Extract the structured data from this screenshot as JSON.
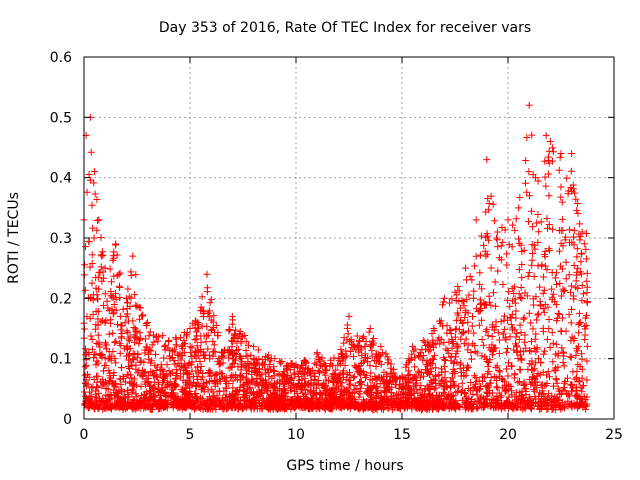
{
  "chart_data": {
    "type": "scatter",
    "title": "Day 353 of 2016, Rate Of TEC Index for receiver vars",
    "xlabel": "GPS time / hours",
    "ylabel": "ROTI / TECUs",
    "xlim": [
      0,
      25
    ],
    "ylim": [
      0,
      0.6
    ],
    "x_ticks": [
      0,
      5,
      10,
      15,
      20,
      25
    ],
    "y_ticks": [
      0,
      0.1,
      0.2,
      0.3,
      0.4,
      0.5,
      0.6
    ],
    "x_tick_labels": [
      "0",
      "5",
      "10",
      "15",
      "20",
      "25"
    ],
    "y_tick_labels": [
      "0",
      "0.1",
      "0.2",
      "0.3",
      "0.4",
      "0.5",
      "0.6"
    ],
    "grid": true,
    "marker": "+",
    "marker_color": "#ff0000",
    "series": [
      {
        "name": "ROTI",
        "envelope_note": "approximate max ROTI per time bin (hours, TECUs)",
        "upper_envelope": [
          [
            0.0,
            0.33
          ],
          [
            0.1,
            0.47
          ],
          [
            0.3,
            0.5
          ],
          [
            0.5,
            0.41
          ],
          [
            0.7,
            0.33
          ],
          [
            1.0,
            0.25
          ],
          [
            1.5,
            0.29
          ],
          [
            2.0,
            0.2
          ],
          [
            2.3,
            0.27
          ],
          [
            3.0,
            0.16
          ],
          [
            4.0,
            0.13
          ],
          [
            5.0,
            0.15
          ],
          [
            5.8,
            0.24
          ],
          [
            6.5,
            0.11
          ],
          [
            7.0,
            0.17
          ],
          [
            8.0,
            0.12
          ],
          [
            9.0,
            0.1
          ],
          [
            10.0,
            0.09
          ],
          [
            11.0,
            0.11
          ],
          [
            12.0,
            0.1
          ],
          [
            12.5,
            0.17
          ],
          [
            13.0,
            0.13
          ],
          [
            13.5,
            0.15
          ],
          [
            14.0,
            0.12
          ],
          [
            15.0,
            0.07
          ],
          [
            15.5,
            0.12
          ],
          [
            16.0,
            0.13
          ],
          [
            16.5,
            0.15
          ],
          [
            17.0,
            0.2
          ],
          [
            17.5,
            0.21
          ],
          [
            18.0,
            0.25
          ],
          [
            18.5,
            0.33
          ],
          [
            19.0,
            0.43
          ],
          [
            19.5,
            0.31
          ],
          [
            20.0,
            0.33
          ],
          [
            20.5,
            0.35
          ],
          [
            21.0,
            0.52
          ],
          [
            21.3,
            0.4
          ],
          [
            21.8,
            0.47
          ],
          [
            22.0,
            0.46
          ],
          [
            22.5,
            0.44
          ],
          [
            23.0,
            0.44
          ],
          [
            23.5,
            0.31
          ]
        ]
      }
    ]
  }
}
